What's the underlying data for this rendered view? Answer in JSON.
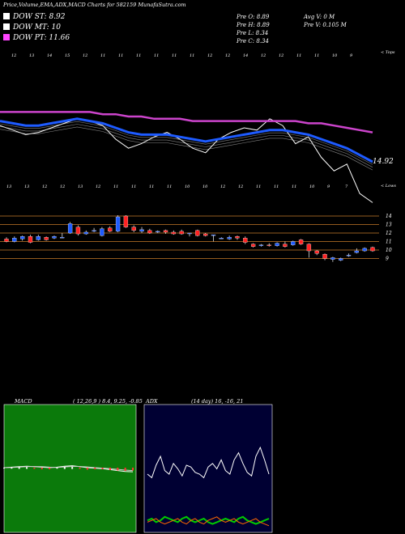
{
  "title": "Price,Volume,EMA,ADX,MACD Charts for 582159 MunafaSutra.com",
  "legend": [
    {
      "label": "DOW ST: 8.92",
      "color": "#ffffff"
    },
    {
      "label": "DOW MT: 10",
      "color": "#ffffff"
    },
    {
      "label": "DOW PT: 11.66",
      "color": "#ff44ff"
    }
  ],
  "quote": {
    "open": "Pre  O: 8.89",
    "high": "Pre  H: 8.89",
    "low": "Pre  L: 8.34",
    "close": "Pre  C: 8.34",
    "avgvol": "Avg V: 0  M",
    "vol": "Pre  V: 0.105 M"
  },
  "colors": {
    "ema_fast": "#1e5bff",
    "ema_slow": "#cc44cc",
    "price_line": "#ffffff",
    "up": "#1e5bff",
    "down": "#ff2222",
    "macd_bg": "#0b7a0b",
    "adx_bg": "#000033"
  },
  "ema_panel": {
    "top_day_labels": [
      "12",
      "13",
      "14",
      "15",
      "12",
      "11",
      "11",
      "11",
      "11",
      "11",
      "11",
      "12",
      "12",
      "14",
      "12",
      "12",
      "11",
      "11",
      "10",
      "9"
    ],
    "bottom_day_labels": [
      "13",
      "13",
      "12",
      "12",
      "13",
      "12",
      "11",
      "11",
      "11",
      "11",
      "10",
      "10",
      "12",
      "12",
      "11",
      "11",
      "11",
      "10",
      "9",
      "7"
    ],
    "right_top": "< Tops",
    "right_bottom": "< Lows",
    "last_value": "14.92"
  },
  "chart_data": [
    {
      "type": "line",
      "title": "EMA",
      "series": [
        {
          "values": [
            12.6,
            12.4,
            12.2,
            12.3,
            12.5,
            12.7,
            12.9,
            12.8,
            12.6,
            12.0,
            11.6,
            11.8,
            12.1,
            12.3,
            12.0,
            11.6,
            11.4,
            12.0,
            12.3,
            12.5,
            12.4,
            12.9,
            12.6,
            11.8,
            12.1,
            11.2,
            10.6,
            10.9,
            9.6,
            9.2
          ]
        },
        {
          "values": [
            12.8,
            12.7,
            12.6,
            12.6,
            12.7,
            12.8,
            12.9,
            12.8,
            12.7,
            12.5,
            12.3,
            12.2,
            12.2,
            12.2,
            12.1,
            12.0,
            11.9,
            12.0,
            12.1,
            12.2,
            12.3,
            12.4,
            12.4,
            12.3,
            12.2,
            12.0,
            11.8,
            11.6,
            11.3,
            11.0
          ]
        },
        {
          "values": [
            13.2,
            13.2,
            13.2,
            13.2,
            13.2,
            13.2,
            13.2,
            13.2,
            13.1,
            13.1,
            13.0,
            13.0,
            12.9,
            12.9,
            12.9,
            12.8,
            12.8,
            12.8,
            12.8,
            12.8,
            12.8,
            12.8,
            12.8,
            12.8,
            12.7,
            12.7,
            12.6,
            12.5,
            12.4,
            12.3
          ]
        }
      ]
    },
    {
      "type": "bar",
      "title": "Price",
      "y_ticks": [
        "14",
        "13",
        "12",
        "11",
        "10",
        "9"
      ],
      "candles": [
        {
          "o": 11.3,
          "c": 11.0,
          "h": 11.5,
          "l": 10.9
        },
        {
          "o": 11.0,
          "c": 11.4,
          "h": 11.6,
          "l": 10.9
        },
        {
          "o": 11.3,
          "c": 11.6,
          "h": 11.7,
          "l": 11.1
        },
        {
          "o": 11.6,
          "c": 10.9,
          "h": 11.8,
          "l": 10.8
        },
        {
          "o": 11.2,
          "c": 11.6,
          "h": 11.8,
          "l": 11.1
        },
        {
          "o": 11.5,
          "c": 11.2,
          "h": 11.6,
          "l": 11.1
        },
        {
          "o": 11.4,
          "c": 11.6,
          "h": 11.7,
          "l": 11.3
        },
        {
          "o": 11.5,
          "c": 11.5,
          "h": 12.0,
          "l": 11.4
        },
        {
          "o": 12.0,
          "c": 13.1,
          "h": 13.3,
          "l": 11.9
        },
        {
          "o": 12.7,
          "c": 11.9,
          "h": 12.9,
          "l": 11.7
        },
        {
          "o": 11.9,
          "c": 12.1,
          "h": 12.3,
          "l": 11.8
        },
        {
          "o": 12.2,
          "c": 12.3,
          "h": 12.6,
          "l": 12.1
        },
        {
          "o": 11.7,
          "c": 12.5,
          "h": 12.7,
          "l": 11.6
        },
        {
          "o": 12.6,
          "c": 12.2,
          "h": 12.8,
          "l": 12.1
        },
        {
          "o": 12.2,
          "c": 13.9,
          "h": 14.1,
          "l": 12.1
        },
        {
          "o": 14.0,
          "c": 12.7,
          "h": 14.1,
          "l": 12.6
        },
        {
          "o": 12.7,
          "c": 12.3,
          "h": 12.9,
          "l": 12.1
        },
        {
          "o": 12.2,
          "c": 12.4,
          "h": 12.7,
          "l": 12.0
        },
        {
          "o": 12.3,
          "c": 12.0,
          "h": 12.5,
          "l": 11.9
        },
        {
          "o": 12.1,
          "c": 12.2,
          "h": 12.3,
          "l": 12.0
        },
        {
          "o": 12.3,
          "c": 12.1,
          "h": 12.4,
          "l": 11.9
        },
        {
          "o": 12.1,
          "c": 11.9,
          "h": 12.3,
          "l": 11.8
        },
        {
          "o": 12.2,
          "c": 11.9,
          "h": 12.4,
          "l": 11.8
        },
        {
          "o": 12.0,
          "c": 12.0,
          "h": 12.0,
          "l": 11.6
        },
        {
          "o": 12.3,
          "c": 11.7,
          "h": 12.4,
          "l": 11.6
        },
        {
          "o": 11.9,
          "c": 11.7,
          "h": 12.0,
          "l": 11.6
        },
        {
          "o": 11.7,
          "c": 11.8,
          "h": 11.8,
          "l": 11.0
        },
        {
          "o": 11.4,
          "c": 11.4,
          "h": 11.5,
          "l": 11.3
        },
        {
          "o": 11.3,
          "c": 11.5,
          "h": 11.7,
          "l": 11.2
        },
        {
          "o": 11.6,
          "c": 11.4,
          "h": 11.7,
          "l": 11.2
        },
        {
          "o": 11.4,
          "c": 10.9,
          "h": 11.6,
          "l": 10.7
        },
        {
          "o": 10.7,
          "c": 10.4,
          "h": 10.8,
          "l": 10.3
        },
        {
          "o": 10.5,
          "c": 10.6,
          "h": 10.7,
          "l": 10.4
        },
        {
          "o": 10.6,
          "c": 10.5,
          "h": 10.8,
          "l": 10.4
        },
        {
          "o": 10.5,
          "c": 10.8,
          "h": 10.9,
          "l": 10.4
        },
        {
          "o": 10.7,
          "c": 10.4,
          "h": 11.0,
          "l": 10.3
        },
        {
          "o": 10.6,
          "c": 11.0,
          "h": 11.1,
          "l": 10.5
        },
        {
          "o": 11.2,
          "c": 10.7,
          "h": 11.3,
          "l": 10.6
        },
        {
          "o": 10.7,
          "c": 9.9,
          "h": 10.8,
          "l": 9.1
        },
        {
          "o": 9.9,
          "c": 9.6,
          "h": 10.0,
          "l": 9.4
        },
        {
          "o": 9.5,
          "c": 9.0,
          "h": 9.6,
          "l": 8.8
        },
        {
          "o": 8.9,
          "c": 9.1,
          "h": 9.2,
          "l": 8.6
        },
        {
          "o": 8.8,
          "c": 9.0,
          "h": 9.1,
          "l": 8.7
        },
        {
          "o": 9.3,
          "c": 9.4,
          "h": 9.6,
          "l": 9.2
        },
        {
          "o": 9.7,
          "c": 9.9,
          "h": 10.2,
          "l": 9.6
        },
        {
          "o": 9.9,
          "c": 10.2,
          "h": 10.3,
          "l": 9.8
        },
        {
          "o": 10.3,
          "c": 9.9,
          "h": 10.4,
          "l": 9.8
        }
      ]
    },
    {
      "type": "line",
      "title": "MACD",
      "subtitle": "( 12,26,9 ) 8.4,  9.25,  -0.85",
      "series": [
        {
          "values": [
            0,
            0.1,
            0.2,
            0.3,
            0.2,
            0.1,
            0,
            0.1,
            0.3,
            0.4,
            0.2,
            0,
            -0.1,
            -0.2,
            -0.4,
            -0.6,
            -0.8,
            -0.85
          ]
        },
        {
          "values": [
            0,
            0.05,
            0.1,
            0.2,
            0.25,
            0.2,
            0.1,
            0.05,
            0.15,
            0.25,
            0.25,
            0.15,
            0,
            -0.1,
            -0.2,
            -0.35,
            -0.5,
            -0.6
          ]
        }
      ]
    },
    {
      "type": "line",
      "title": "ADX",
      "subtitle": "(14  day) 16,  -16,  21",
      "series": [
        {
          "values": [
            30,
            28,
            35,
            40,
            32,
            30,
            36,
            33,
            29,
            35,
            34,
            31,
            30,
            28,
            34,
            36,
            33,
            38,
            32,
            30,
            38,
            42,
            36,
            31,
            29,
            40,
            45,
            38,
            30
          ]
        },
        {
          "values": [
            4,
            5,
            3,
            4,
            6,
            5,
            4,
            3,
            5,
            6,
            4,
            3,
            4,
            5,
            3,
            2,
            3,
            4,
            5,
            4,
            3,
            5,
            6,
            4,
            3,
            2,
            3,
            4,
            5
          ]
        },
        {
          "values": [
            3,
            4,
            5,
            3,
            2,
            3,
            4,
            5,
            3,
            2,
            4,
            5,
            3,
            2,
            4,
            5,
            6,
            4,
            3,
            4,
            5,
            3,
            2,
            3,
            4,
            5,
            3,
            2,
            1
          ]
        }
      ]
    }
  ]
}
